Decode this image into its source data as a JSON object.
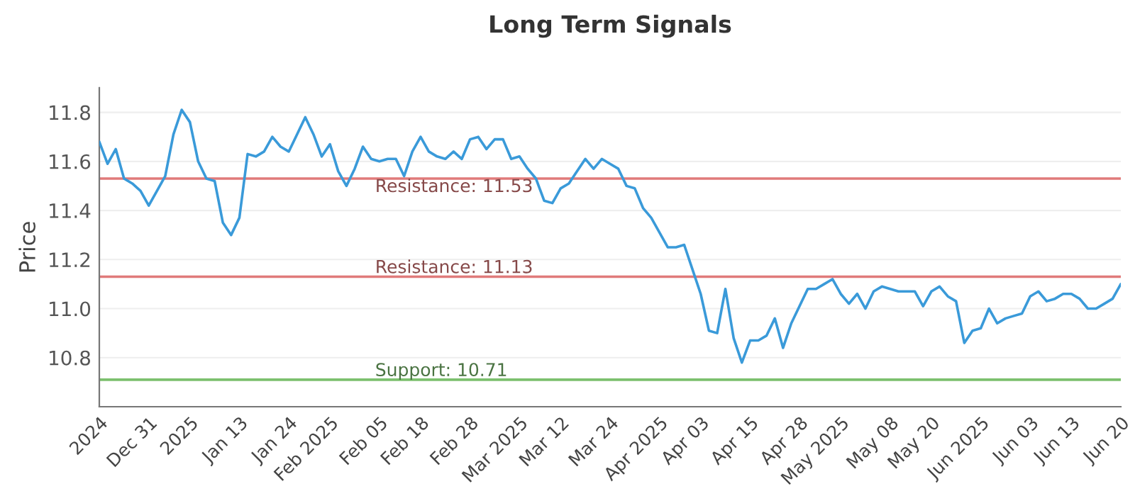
{
  "chart_data": {
    "type": "line",
    "title": "Long Term Signals",
    "ylabel": "Price",
    "categories": [
      "2024",
      null,
      null,
      null,
      null,
      null,
      "Dec 31",
      null,
      null,
      null,
      null,
      "2025",
      null,
      null,
      null,
      null,
      null,
      "Jan 13",
      null,
      null,
      null,
      null,
      null,
      "Jan 24",
      null,
      null,
      null,
      null,
      "Feb 2025",
      null,
      null,
      null,
      null,
      null,
      "Feb 05",
      null,
      null,
      null,
      null,
      "Feb 18",
      null,
      null,
      null,
      null,
      null,
      "Feb 28",
      null,
      null,
      null,
      null,
      null,
      "Mar 2025",
      null,
      null,
      null,
      null,
      "Mar 12",
      null,
      null,
      null,
      null,
      null,
      "Mar 24",
      null,
      null,
      null,
      null,
      null,
      "Apr 2025",
      null,
      null,
      null,
      null,
      "Apr 03",
      null,
      null,
      null,
      null,
      null,
      "Apr 15",
      null,
      null,
      null,
      null,
      null,
      "Apr 28",
      null,
      null,
      null,
      null,
      "May 2025",
      null,
      null,
      null,
      null,
      null,
      "May 08",
      null,
      null,
      null,
      null,
      "May 20",
      null,
      null,
      null,
      null,
      null,
      "Jun 2025",
      null,
      null,
      null,
      null,
      null,
      "Jun 03",
      null,
      null,
      null,
      null,
      "Jun 13",
      null,
      null,
      null,
      null,
      null,
      "Jun 20"
    ],
    "series": [
      {
        "color": "#3a9ad9",
        "values": [
          11.68,
          11.59,
          11.65,
          11.53,
          11.51,
          11.48,
          11.42,
          11.48,
          11.54,
          11.71,
          11.81,
          11.76,
          11.6,
          11.53,
          11.52,
          11.35,
          11.3,
          11.37,
          11.63,
          11.62,
          11.64,
          11.7,
          11.66,
          11.64,
          11.71,
          11.78,
          11.71,
          11.62,
          11.67,
          11.56,
          11.5,
          11.57,
          11.66,
          11.61,
          11.6,
          11.61,
          11.61,
          11.54,
          11.64,
          11.7,
          11.64,
          11.62,
          11.61,
          11.64,
          11.61,
          11.69,
          11.7,
          11.65,
          11.69,
          11.69,
          11.61,
          11.62,
          11.57,
          11.53,
          11.44,
          11.43,
          11.49,
          11.51,
          11.56,
          11.61,
          11.57,
          11.61,
          11.59,
          11.57,
          11.5,
          11.49,
          11.41,
          11.37,
          11.31,
          11.25,
          11.25,
          11.26,
          11.16,
          11.06,
          10.91,
          10.9,
          11.08,
          10.88,
          10.78,
          10.87,
          10.87,
          10.89,
          10.96,
          10.84,
          10.94,
          11.01,
          11.08,
          11.08,
          11.1,
          11.12,
          11.06,
          11.02,
          11.06,
          11.0,
          11.07,
          11.09,
          11.08,
          11.07,
          11.07,
          11.07,
          11.01,
          11.07,
          11.09,
          11.05,
          11.03,
          10.86,
          10.91,
          10.92,
          11.0,
          10.94,
          10.96,
          10.97,
          10.98,
          11.05,
          11.07,
          11.03,
          11.04,
          11.06,
          11.06,
          11.04,
          11.0,
          11.0,
          11.02,
          11.04,
          11.1
        ]
      }
    ],
    "ylim": [
      10.6,
      11.9
    ],
    "yticks": [
      {
        "value": 10.8,
        "label": "10.8"
      },
      {
        "value": 11.0,
        "label": "11.0"
      },
      {
        "value": 11.2,
        "label": "11.2"
      },
      {
        "value": 11.4,
        "label": "11.4"
      },
      {
        "value": 11.6,
        "label": "11.6"
      },
      {
        "value": 11.8,
        "label": "11.8"
      }
    ],
    "ref_lines": [
      {
        "axis": "y",
        "value": 11.53,
        "label": "Resistance: 11.53",
        "color": "#e07a7a"
      },
      {
        "axis": "y",
        "value": 11.13,
        "label": "Resistance: 11.13",
        "color": "#e07a7a"
      },
      {
        "axis": "y",
        "value": 10.71,
        "label": "Support: 10.71",
        "color": "#7cc06e"
      }
    ],
    "grid": "y",
    "marker": "none",
    "line_style": "solid",
    "legend": false
  }
}
